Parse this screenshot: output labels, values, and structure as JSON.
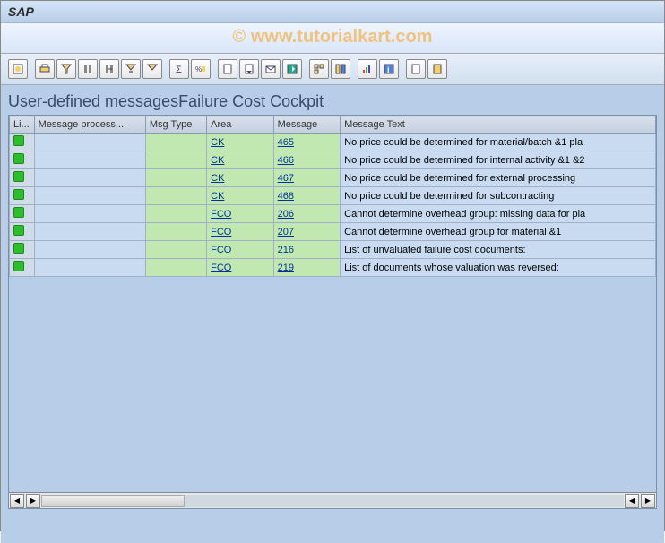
{
  "window": {
    "title": "SAP"
  },
  "watermark": "© www.tutorialkart.com",
  "section": {
    "title": "User-defined messagesFailure Cost Cockpit"
  },
  "toolbar": {
    "colors": {
      "yellow": "#f4d060",
      "blue": "#5080d0",
      "gray": "#888"
    }
  },
  "table": {
    "columns": [
      {
        "key": "li",
        "label": "Li..."
      },
      {
        "key": "proc",
        "label": "Message process..."
      },
      {
        "key": "type",
        "label": "Msg Type"
      },
      {
        "key": "area",
        "label": "Area"
      },
      {
        "key": "msg",
        "label": "Message"
      },
      {
        "key": "text",
        "label": "Message Text"
      }
    ],
    "rows": [
      {
        "proc": "",
        "type": "",
        "area": "CK",
        "msg": "465",
        "text": "No price could be determined for material/batch &1 pla"
      },
      {
        "proc": "",
        "type": "",
        "area": "CK",
        "msg": "466",
        "text": "No price could be determined for internal activity &1 &2"
      },
      {
        "proc": "",
        "type": "",
        "area": "CK",
        "msg": "467",
        "text": "No price could be determined for external processing"
      },
      {
        "proc": "",
        "type": "",
        "area": "CK",
        "msg": "468",
        "text": "No price could be determined for subcontracting"
      },
      {
        "proc": "",
        "type": "",
        "area": "FCO",
        "msg": "206",
        "text": "Cannot determine overhead group: missing data for pla"
      },
      {
        "proc": "",
        "type": "",
        "area": "FCO",
        "msg": "207",
        "text": "Cannot determine overhead group for material &1"
      },
      {
        "proc": "",
        "type": "",
        "area": "FCO",
        "msg": "216",
        "text": "List of unvaluated failure cost documents:"
      },
      {
        "proc": "",
        "type": "",
        "area": "FCO",
        "msg": "219",
        "text": "List of documents whose valuation was reversed:"
      }
    ]
  },
  "styling": {
    "background": "#b8cde8",
    "header_bg": "#d8e0ec",
    "cell_bg": "#d0dce8",
    "green_bg": "#c0e8b0",
    "link_color": "#003399",
    "status_green": "#2dbd2d",
    "watermark_color": "#f4b860",
    "font_size_title": 18,
    "font_size_cell": 11
  }
}
